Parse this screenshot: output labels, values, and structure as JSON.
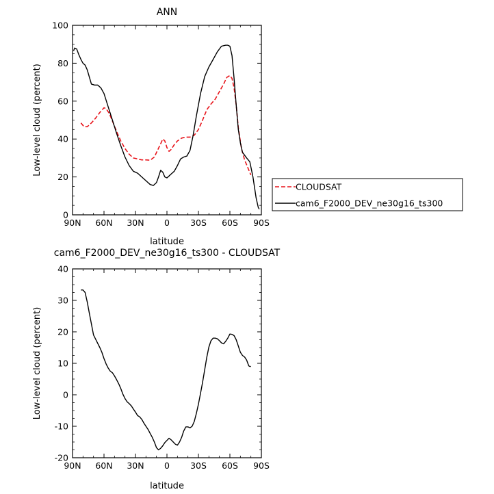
{
  "chart_data": [
    {
      "type": "line",
      "title": "ANN",
      "xlabel": "latitude",
      "ylabel": "Low-level cloud (percent)",
      "xlim": [
        90,
        -90
      ],
      "ylim": [
        0,
        100
      ],
      "x_ticks": [
        90,
        60,
        30,
        0,
        -30,
        -60,
        -90
      ],
      "x_tick_labels": [
        "90N",
        "60N",
        "30N",
        "0",
        "30S",
        "60S",
        "90S"
      ],
      "y_ticks": [
        0,
        20,
        40,
        60,
        80,
        100
      ],
      "y_tick_labels": [
        "0",
        "20",
        "40",
        "60",
        "80",
        "100"
      ],
      "legend_position": "right",
      "series": [
        {
          "name": "CLOUDSAT",
          "color": "#e8141b",
          "dash": "dashed",
          "x": [
            82,
            79,
            76,
            72,
            68,
            64,
            60,
            58,
            55,
            52,
            48,
            44,
            40,
            36,
            32,
            28,
            24,
            20,
            16,
            12,
            9,
            6,
            4,
            2,
            0,
            -2,
            -4,
            -7,
            -10,
            -14,
            -18,
            -22,
            -26,
            -30,
            -34,
            -38,
            -42,
            -46,
            -50,
            -54,
            -57,
            -60,
            -62,
            -64,
            -66,
            -68,
            -71,
            -74,
            -77,
            -80
          ],
          "y": [
            48.5,
            46.5,
            46.5,
            48.5,
            51,
            54,
            56.5,
            56,
            53.5,
            49.5,
            44,
            39,
            35,
            32,
            30,
            29.5,
            29,
            29,
            28.8,
            30.5,
            34,
            37.5,
            40,
            39,
            35.5,
            33.5,
            34.5,
            37,
            39,
            40.5,
            41,
            41,
            42,
            45,
            50,
            55.5,
            58.5,
            61,
            65,
            69,
            72.5,
            73.5,
            72,
            67,
            58,
            46,
            35,
            29,
            25,
            21
          ]
        },
        {
          "name": "cam6_F2000_DEV_ne30g16_ts300",
          "color": "#000000",
          "dash": "solid",
          "x": [
            89,
            88,
            86,
            84,
            82,
            80,
            78,
            76,
            72,
            69,
            66,
            63,
            60,
            56,
            52,
            48,
            44,
            40,
            36,
            32,
            28,
            24,
            20,
            16,
            13,
            10,
            8,
            6,
            4,
            2,
            0,
            -2,
            -4,
            -7,
            -10,
            -13,
            -16,
            -19,
            -22,
            -25,
            -28,
            -32,
            -36,
            -40,
            -44,
            -48,
            -52,
            -56,
            -58,
            -60,
            -62,
            -64,
            -66,
            -68,
            -70,
            -72,
            -76,
            -79,
            -82,
            -85,
            -87,
            -88
          ],
          "y": [
            86.5,
            88,
            87.5,
            84.5,
            82,
            80,
            79,
            76.5,
            69,
            68.5,
            68.5,
            67,
            64,
            57,
            50,
            43,
            36.5,
            30.5,
            26,
            23,
            22,
            20,
            18,
            16,
            15.5,
            17,
            20,
            23.5,
            22.5,
            20,
            19.5,
            20.5,
            21.5,
            23,
            26,
            29.5,
            30.5,
            31,
            34,
            42,
            52,
            64,
            73,
            78,
            82,
            86,
            89,
            89.5,
            89.5,
            89,
            84,
            72,
            58,
            45,
            38,
            33,
            30,
            28,
            20,
            9,
            4,
            3
          ]
        }
      ]
    },
    {
      "type": "line",
      "title": "cam6_F2000_DEV_ne30g16_ts300 - CLOUDSAT",
      "xlabel": "latitude",
      "ylabel": "Low-level cloud (percent)",
      "xlim": [
        90,
        -90
      ],
      "ylim": [
        -20,
        40
      ],
      "x_ticks": [
        90,
        60,
        30,
        0,
        -30,
        -60,
        -90
      ],
      "x_tick_labels": [
        "90N",
        "60N",
        "30N",
        "0",
        "30S",
        "60S",
        "90S"
      ],
      "y_ticks": [
        -20,
        -10,
        0,
        10,
        20,
        30,
        40
      ],
      "y_tick_labels": [
        "-20",
        "-10",
        "0",
        "10",
        "20",
        "30",
        "40"
      ],
      "series": [
        {
          "color": "#000000",
          "dash": "solid",
          "x": [
            82,
            80,
            78,
            76,
            74,
            72,
            70,
            67,
            64,
            62,
            60,
            58,
            56,
            54,
            52,
            50,
            48,
            46,
            44,
            42,
            40,
            38,
            36,
            34,
            32,
            30,
            28,
            26,
            24,
            22,
            20,
            18,
            16,
            14,
            12,
            10,
            8,
            6,
            4,
            2,
            0,
            -2,
            -4,
            -6,
            -8,
            -10,
            -12,
            -14,
            -16,
            -18,
            -20,
            -22,
            -24,
            -26,
            -28,
            -30,
            -32,
            -34,
            -36,
            -38,
            -40,
            -42,
            -44,
            -46,
            -48,
            -50,
            -52,
            -54,
            -56,
            -58,
            -60,
            -62,
            -64,
            -66,
            -68,
            -70,
            -72,
            -74,
            -76,
            -78,
            -79,
            -80
          ],
          "y": [
            33.3,
            33.3,
            32.5,
            29.5,
            26,
            22.5,
            19,
            17,
            15,
            13.5,
            11.5,
            9.8,
            8.5,
            7.5,
            7,
            6,
            4.8,
            3.5,
            2,
            0.2,
            -1.2,
            -2.2,
            -2.8,
            -3.5,
            -4.5,
            -5.5,
            -6.6,
            -7,
            -7.8,
            -9,
            -10,
            -11,
            -12.3,
            -13.5,
            -15,
            -16.8,
            -17.5,
            -17,
            -16.2,
            -15.2,
            -14.5,
            -13.8,
            -14.3,
            -15,
            -15.7,
            -16,
            -15,
            -13.5,
            -11.5,
            -10.2,
            -10.2,
            -10.5,
            -10,
            -8.5,
            -6,
            -3,
            0.5,
            4,
            8,
            12,
            15.2,
            17.2,
            18,
            18,
            17.8,
            17.2,
            16.5,
            16.2,
            17,
            18,
            19.3,
            19.2,
            18.8,
            17.5,
            15.5,
            13.5,
            12.5,
            12,
            11,
            9.2,
            9,
            9
          ]
        }
      ]
    }
  ]
}
